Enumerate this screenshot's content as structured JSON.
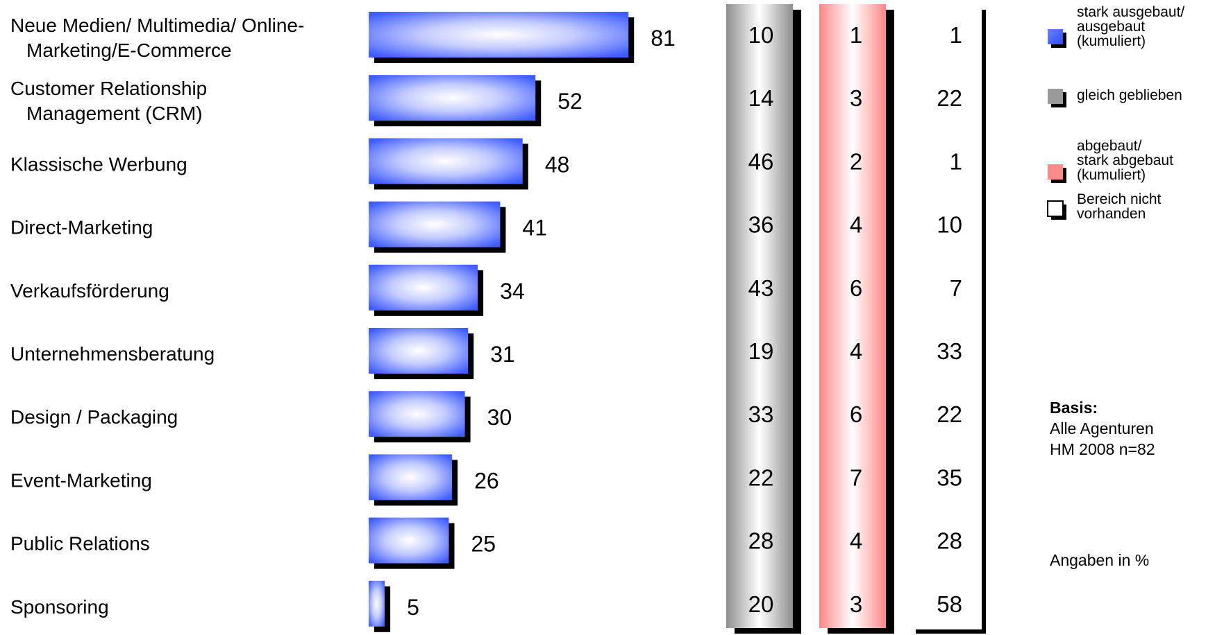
{
  "chart_data": {
    "type": "bar",
    "orientation": "horizontal",
    "categories": [
      [
        "Neue Medien/ Multimedia/ Online-",
        "Marketing/E-Commerce"
      ],
      [
        "Customer Relationship",
        "Management (CRM)"
      ],
      [
        "Klassische Werbung"
      ],
      [
        "Direct-Marketing"
      ],
      [
        "Verkaufsförderung"
      ],
      [
        "Unternehmensberatung"
      ],
      [
        "Design / Packaging"
      ],
      [
        "Event-Marketing"
      ],
      [
        "Public Relations"
      ],
      [
        "Sponsoring"
      ]
    ],
    "series": [
      {
        "name": "stark ausgebaut/ ausgebaut (kumuliert)",
        "color": "#3f5cff",
        "display": "bar",
        "values": [
          81,
          52,
          48,
          41,
          34,
          31,
          30,
          26,
          25,
          5
        ]
      },
      {
        "name": "gleich geblieben",
        "color": "#9a9a9a",
        "display": "column",
        "values": [
          10,
          14,
          46,
          36,
          43,
          19,
          33,
          22,
          28,
          20
        ]
      },
      {
        "name": "abgebaut/ stark abgebaut (kumuliert)",
        "color": "#ff8a8a",
        "display": "column",
        "values": [
          1,
          3,
          2,
          4,
          6,
          4,
          6,
          7,
          4,
          3
        ]
      },
      {
        "name": "Bereich nicht vorhanden",
        "color": "#ffffff",
        "display": "column",
        "values": [
          1,
          22,
          1,
          10,
          7,
          33,
          22,
          35,
          28,
          58
        ]
      }
    ],
    "xlim": [
      0,
      100
    ],
    "legend": {
      "position": "right",
      "entries": [
        [
          "stark ausgebaut/",
          "ausgebaut",
          "(kumuliert)"
        ],
        [
          "gleich geblieben"
        ],
        [
          "abgebaut/",
          "stark abgebaut",
          "(kumuliert)"
        ],
        [
          "Bereich nicht",
          "vorhanden"
        ]
      ]
    }
  },
  "notes": {
    "basis_heading": "Basis:",
    "basis_line1": "Alle Agenturen",
    "basis_line2": "HM 2008 n=82",
    "unit": "Angaben in %"
  }
}
